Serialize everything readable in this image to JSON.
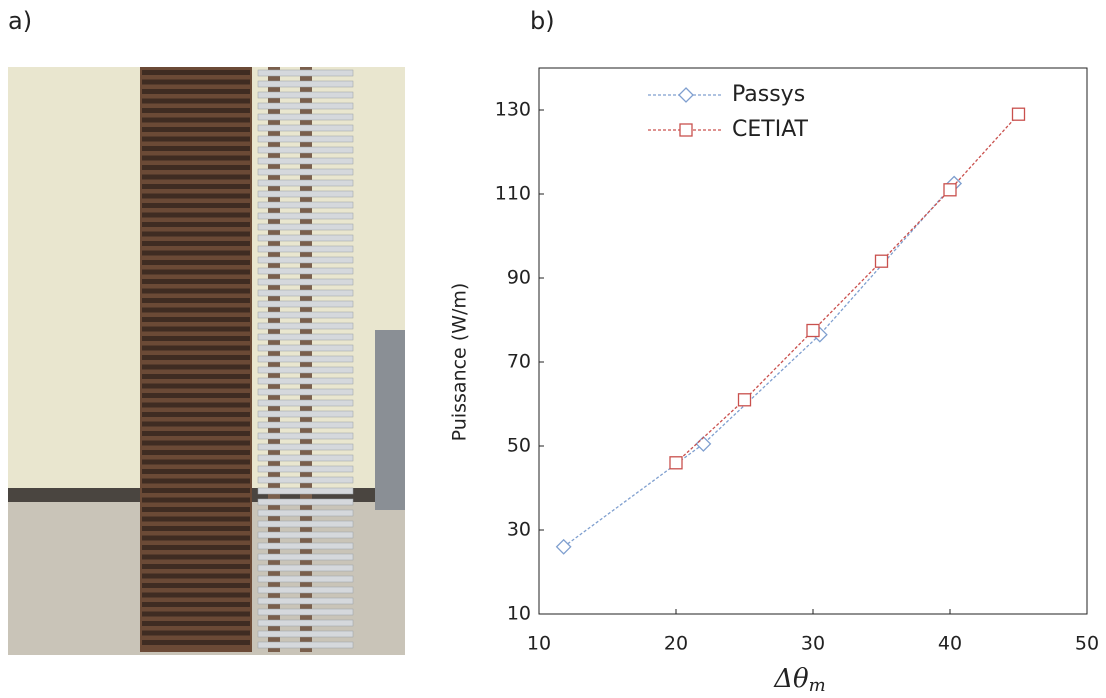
{
  "panel_labels": [
    "a)",
    "b)"
  ],
  "chart_data": {
    "type": "line",
    "xlabel": "Δθ",
    "xlabel_sub": "m",
    "ylabel": "Puissance (W/m)",
    "xlim": [
      10,
      50
    ],
    "xticks": [
      10,
      20,
      30,
      40,
      50
    ],
    "ylim": [
      10,
      140
    ],
    "yticks": [
      10,
      30,
      50,
      70,
      90,
      110,
      130
    ],
    "legend": "upper left",
    "series": [
      {
        "name": "Passys",
        "color": "#7f9fcf",
        "marker": "diamond",
        "x": [
          11.8,
          22,
          30.5,
          40.3
        ],
        "values": [
          26,
          50.5,
          76.5,
          112.5
        ]
      },
      {
        "name": "CETIAT",
        "color": "#c9504d",
        "marker": "square",
        "x": [
          20,
          25,
          30,
          35,
          40,
          45
        ],
        "values": [
          46,
          61,
          77.5,
          94,
          111,
          129
        ]
      }
    ]
  }
}
